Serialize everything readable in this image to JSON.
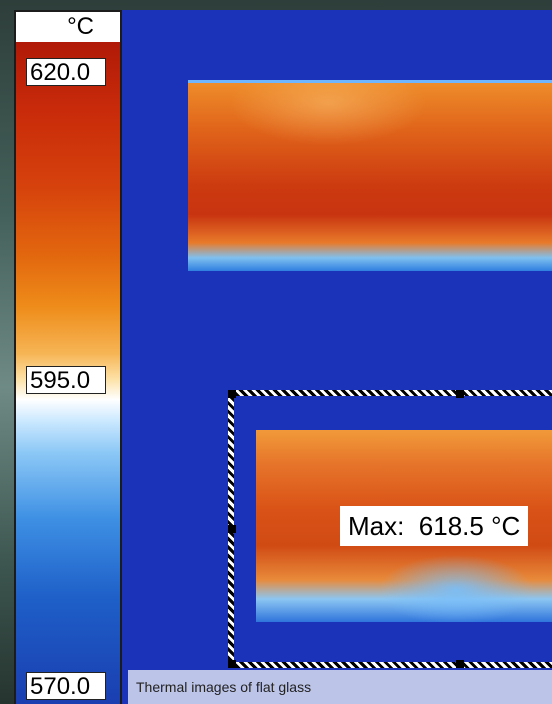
{
  "scale": {
    "unit": "°C",
    "max": "620.0",
    "mid": "595.0",
    "min": "570.0"
  },
  "measurement": {
    "label": "Max:",
    "value": "618.5 °C"
  },
  "caption": "Thermal images of flat glass",
  "colors": {
    "background_view": "#1a33b8",
    "hot": "#c83410",
    "cold": "#1a3eb0"
  }
}
